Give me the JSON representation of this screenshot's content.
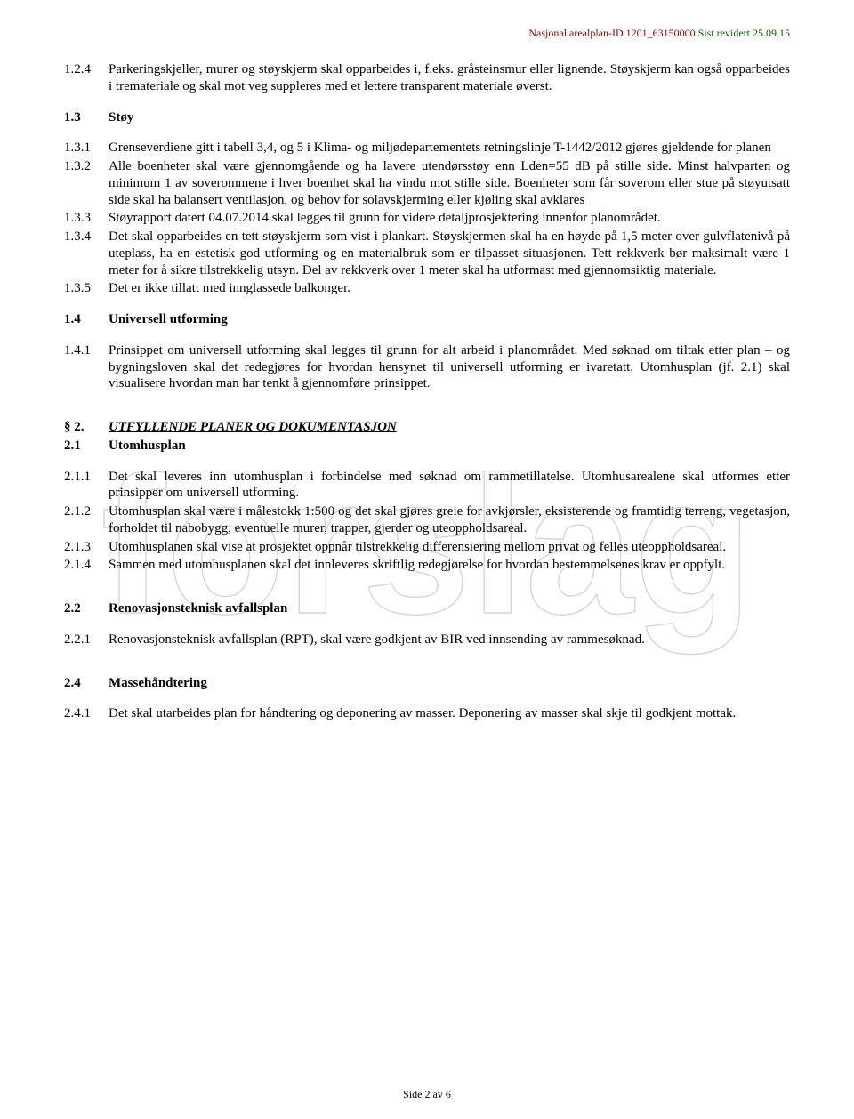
{
  "header": {
    "left": "Nasjonal arealplan-ID 1201_63150000",
    "right": "  Sist revidert 25.09.15"
  },
  "watermark": {
    "text": "forslag",
    "stroke": "#bfbfbf",
    "fontsize": 180
  },
  "sections": [
    {
      "type": "item",
      "num": "1.2.4",
      "text": "Parkeringskjeller, murer og støyskjerm skal opparbeides i, f.eks. gråsteinsmur eller lignende. Støyskjerm kan også opparbeides i tremateriale og skal mot veg suppleres med et lettere transparent materiale øverst."
    },
    {
      "type": "spacer"
    },
    {
      "type": "item",
      "num": "1.3",
      "text": "Støy",
      "bold": true
    },
    {
      "type": "spacer"
    },
    {
      "type": "item",
      "num": "1.3.1",
      "text": "Grenseverdiene gitt i tabell 3,4, og 5 i Klima- og miljødepartementets retningslinje T-1442/2012 gjøres gjeldende for planen"
    },
    {
      "type": "item",
      "num": "1.3.2",
      "text": "Alle boenheter skal være gjennomgående og ha lavere utendørsstøy enn Lden=55 dB på stille side. Minst halvparten og minimum 1 av soverommene i hver boenhet skal ha vindu mot stille side. Boenheter som får soverom eller stue på støyutsatt side skal ha balansert ventilasjon, og behov for solavskjerming eller kjøling skal avklares"
    },
    {
      "type": "item",
      "num": "1.3.3",
      "text": "Støyrapport datert 04.07.2014 skal legges til grunn for videre detaljprosjektering innenfor planområdet."
    },
    {
      "type": "item",
      "num": "1.3.4",
      "text": "Det skal opparbeides en tett støyskjerm som vist i plankart. Støyskjermen skal ha en høyde på 1,5 meter over gulvflatenivå på uteplass, ha en estetisk god utforming og en materialbruk som er tilpasset situasjonen. Tett rekkverk bør maksimalt være 1 meter for å sikre tilstrekkelig utsyn. Del av rekkverk over 1 meter skal ha utformast med gjennomsiktig materiale."
    },
    {
      "type": "item",
      "num": "1.3.5",
      "text": "Det er ikke tillatt med innglassede balkonger."
    },
    {
      "type": "spacer"
    },
    {
      "type": "item",
      "num": "1.4",
      "text": "Universell utforming",
      "bold": true
    },
    {
      "type": "spacer"
    },
    {
      "type": "item",
      "num": "1.4.1",
      "text": "Prinsippet om universell utforming skal legges til grunn for alt arbeid i planområdet. Med søknad om tiltak etter plan – og bygningsloven skal det redegjøres for hvordan hensynet til universell utforming er ivaretatt. Utomhusplan (jf. 2.1) skal visualisere hvordan man har tenkt å gjennomføre prinsippet."
    },
    {
      "type": "spacer"
    },
    {
      "type": "spacer"
    },
    {
      "type": "item",
      "num": "§ 2.",
      "text": "UTFYLLENDE PLANER OG DOKUMENTASJON",
      "section": true
    },
    {
      "type": "item",
      "num": "2.1",
      "text": "Utomhusplan",
      "bold": true
    },
    {
      "type": "spacer"
    },
    {
      "type": "item",
      "num": "2.1.1",
      "text": "Det skal leveres inn utomhusplan i forbindelse med søknad om rammetillatelse. Utomhusarealene skal utformes etter prinsipper om universell utforming."
    },
    {
      "type": "item",
      "num": "2.1.2",
      "text": "Utomhusplan skal være i målestokk 1:500 og det skal gjøres greie for avkjørsler, eksisterende og framtidig terreng, vegetasjon, forholdet til nabobygg, eventuelle murer, trapper, gjerder og uteoppholdsareal."
    },
    {
      "type": "item",
      "num": "2.1.3",
      "text": "Utomhusplanen skal vise at prosjektet oppnår tilstrekkelig differensiering mellom privat og felles uteoppholdsareal."
    },
    {
      "type": "item",
      "num": "2.1.4",
      "text": "Sammen med utomhusplanen skal det innleveres skriftlig redegjørelse for hvordan bestemmelsenes krav er oppfylt."
    },
    {
      "type": "spacer"
    },
    {
      "type": "spacer"
    },
    {
      "type": "item",
      "num": "2.2",
      "text": "Renovasjonsteknisk avfallsplan",
      "bold": true
    },
    {
      "type": "spacer"
    },
    {
      "type": "item",
      "num": "2.2.1",
      "text": "Renovasjonsteknisk avfallsplan (RPT), skal være godkjent av BIR ved innsending av rammesøknad."
    },
    {
      "type": "spacer"
    },
    {
      "type": "spacer"
    },
    {
      "type": "item",
      "num": "2.4",
      "text": "Massehåndtering",
      "bold": true
    },
    {
      "type": "spacer"
    },
    {
      "type": "item",
      "num": "2.4.1",
      "text": "Det skal utarbeides plan for håndtering og deponering av masser. Deponering av masser skal skje til godkjent mottak."
    }
  ],
  "footer": {
    "text": "Side 2 av 6"
  }
}
